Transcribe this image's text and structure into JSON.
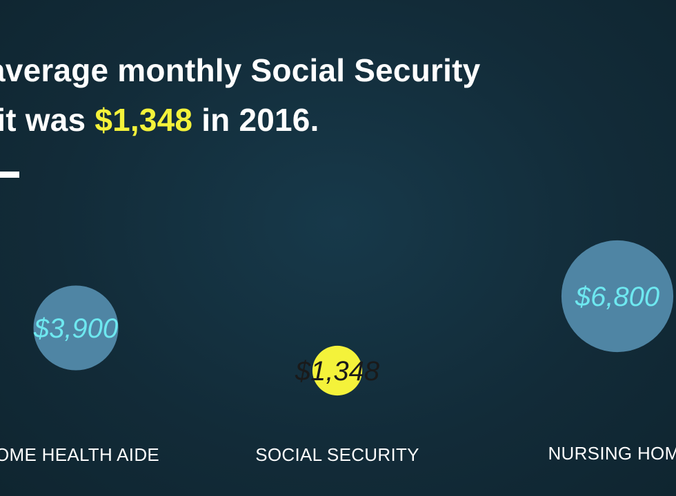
{
  "headline": {
    "line1": "average monthly Social Security",
    "line2_prefix": "efit was ",
    "line2_highlight": "$1,348",
    "line2_suffix": " in 2016."
  },
  "colors": {
    "background": "#122b38",
    "bubble_blue": "#4f85a4",
    "bubble_value_cyan": "#6ee8f0",
    "highlight_yellow": "#f4f23a",
    "text_white": "#ffffff"
  },
  "chart_data": {
    "type": "bubble",
    "title": "",
    "bubbles": [
      {
        "label": "OME HEALTH AIDE",
        "value": 3900,
        "value_label": "$3,900",
        "color": "#4f85a4",
        "value_color": "#6ee8f0"
      },
      {
        "label": "SOCIAL SECURITY",
        "value": 1348,
        "value_label": "$1,348",
        "color": "#f4f23a",
        "value_color": "#1a1a1a"
      },
      {
        "label": "NURSING HOM",
        "value": 6800,
        "value_label": "$6,800",
        "color": "#4f85a4",
        "value_color": "#6ee8f0"
      }
    ]
  }
}
